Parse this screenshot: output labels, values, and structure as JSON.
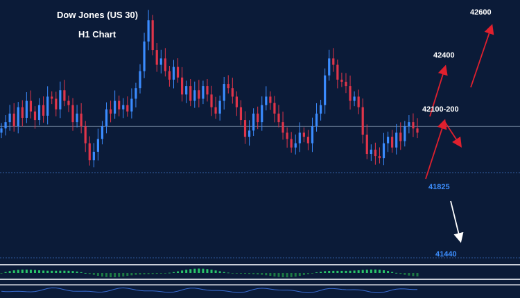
{
  "title": "Dow Jones (US 30)",
  "subtitle": "H1 Chart",
  "colors": {
    "background": "#0b1b38",
    "bull": "#3b8cff",
    "bear": "#e0354a",
    "arrow_up": "#e0202e",
    "arrow_down": "#ffffff",
    "support_label": "#3d8fff",
    "target_label": "#ffffff",
    "osc_pos": "#29c46a",
    "osc_neg": "#1d7a44"
  },
  "chart_data": {
    "type": "candlestick",
    "ylim": [
      41400,
      42800
    ],
    "close_series": [
      42050,
      42080,
      42120,
      42060,
      42150,
      42100,
      42180,
      42130,
      42090,
      42160,
      42110,
      42200,
      42190,
      42140,
      42230,
      42180,
      42160,
      42080,
      42120,
      42060,
      41980,
      41900,
      41940,
      42000,
      42060,
      42140,
      42120,
      42180,
      42140,
      42160,
      42130,
      42190,
      42240,
      42320,
      42460,
      42560,
      42420,
      42350,
      42380,
      42320,
      42280,
      42340,
      42290,
      42210,
      42250,
      42180,
      42230,
      42190,
      42250,
      42210,
      42150,
      42120,
      42180,
      42260,
      42240,
      42200,
      42150,
      42090,
      42010,
      42040,
      42120,
      42080,
      42160,
      42200,
      42170,
      42120,
      42080,
      42030,
      42000,
      41960,
      41980,
      42030,
      42010,
      41980,
      42060,
      42120,
      42160,
      42300,
      42380,
      42350,
      42280,
      42270,
      42250,
      42180,
      42200,
      42150,
      42020,
      41930,
      41950,
      41920,
      41910,
      41980,
      42010,
      41960,
      42030,
      41990,
      42060,
      42080,
      42050,
      42030
    ],
    "levels": [
      {
        "label": "42600",
        "value": 42600,
        "kind": "target"
      },
      {
        "label": "42400",
        "value": 42400,
        "kind": "target"
      },
      {
        "label": "42100-200",
        "value": 42150,
        "kind": "target"
      },
      {
        "label": "41825",
        "value": 41825,
        "kind": "support"
      },
      {
        "label": "41440",
        "value": 41440,
        "kind": "support"
      }
    ],
    "current_price": 42060
  }
}
